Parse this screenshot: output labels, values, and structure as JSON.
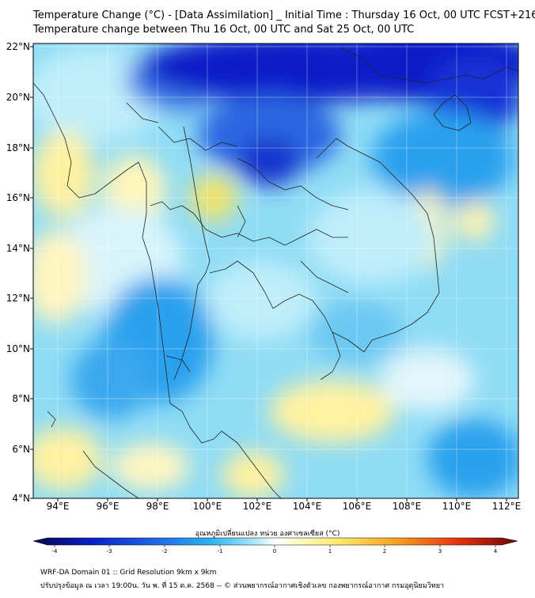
{
  "title": {
    "line1": "Temperature Change (°C) - [Data Assimilation] _ Initial Time : Thursday 16 Oct, 00 UTC FCST+216",
    "line2": "Temperature change between Thu 16 Oct, 00 UTC and Sat 25 Oct, 00 UTC"
  },
  "map": {
    "lat_labels": [
      "22°N",
      "20°N",
      "18°N",
      "16°N",
      "14°N",
      "12°N",
      "10°N",
      "8°N",
      "6°N",
      "4°N"
    ],
    "lon_labels": [
      "94°E",
      "96°E",
      "98°E",
      "100°E",
      "102°E",
      "104°E",
      "106°E",
      "108°E",
      "110°E",
      "112°E"
    ],
    "colors": {
      "cold": "#0a1fc8",
      "mid_cold": "#2aa0ee",
      "light_cold": "#9be2f7",
      "neutral": "#e6f6fb",
      "warm": "#fff4a0",
      "warmer": "#f3e36a"
    }
  },
  "colorbar": {
    "title": "อุณหภูมิเปลี่ยนแปลง หน่วย องศาเซลเซียส (°C)",
    "ticks": [
      "-4",
      "-3",
      "-2",
      "-1",
      "0",
      "1",
      "2",
      "3",
      "4"
    ]
  },
  "footer": {
    "line1": "WRF-DA Domain 01 :: Grid Resolution 9km x 9km",
    "line2": "ปรับปรุงข้อมูล ณ เวลา 19:00น. วัน พ. ที่ 15 ต.ค. 2568 -- © ส่วนพยากรณ์อากาศเชิงตัวเลข กองพยากรณ์อากาศ กรมอุตุนิยมวิทยา"
  }
}
